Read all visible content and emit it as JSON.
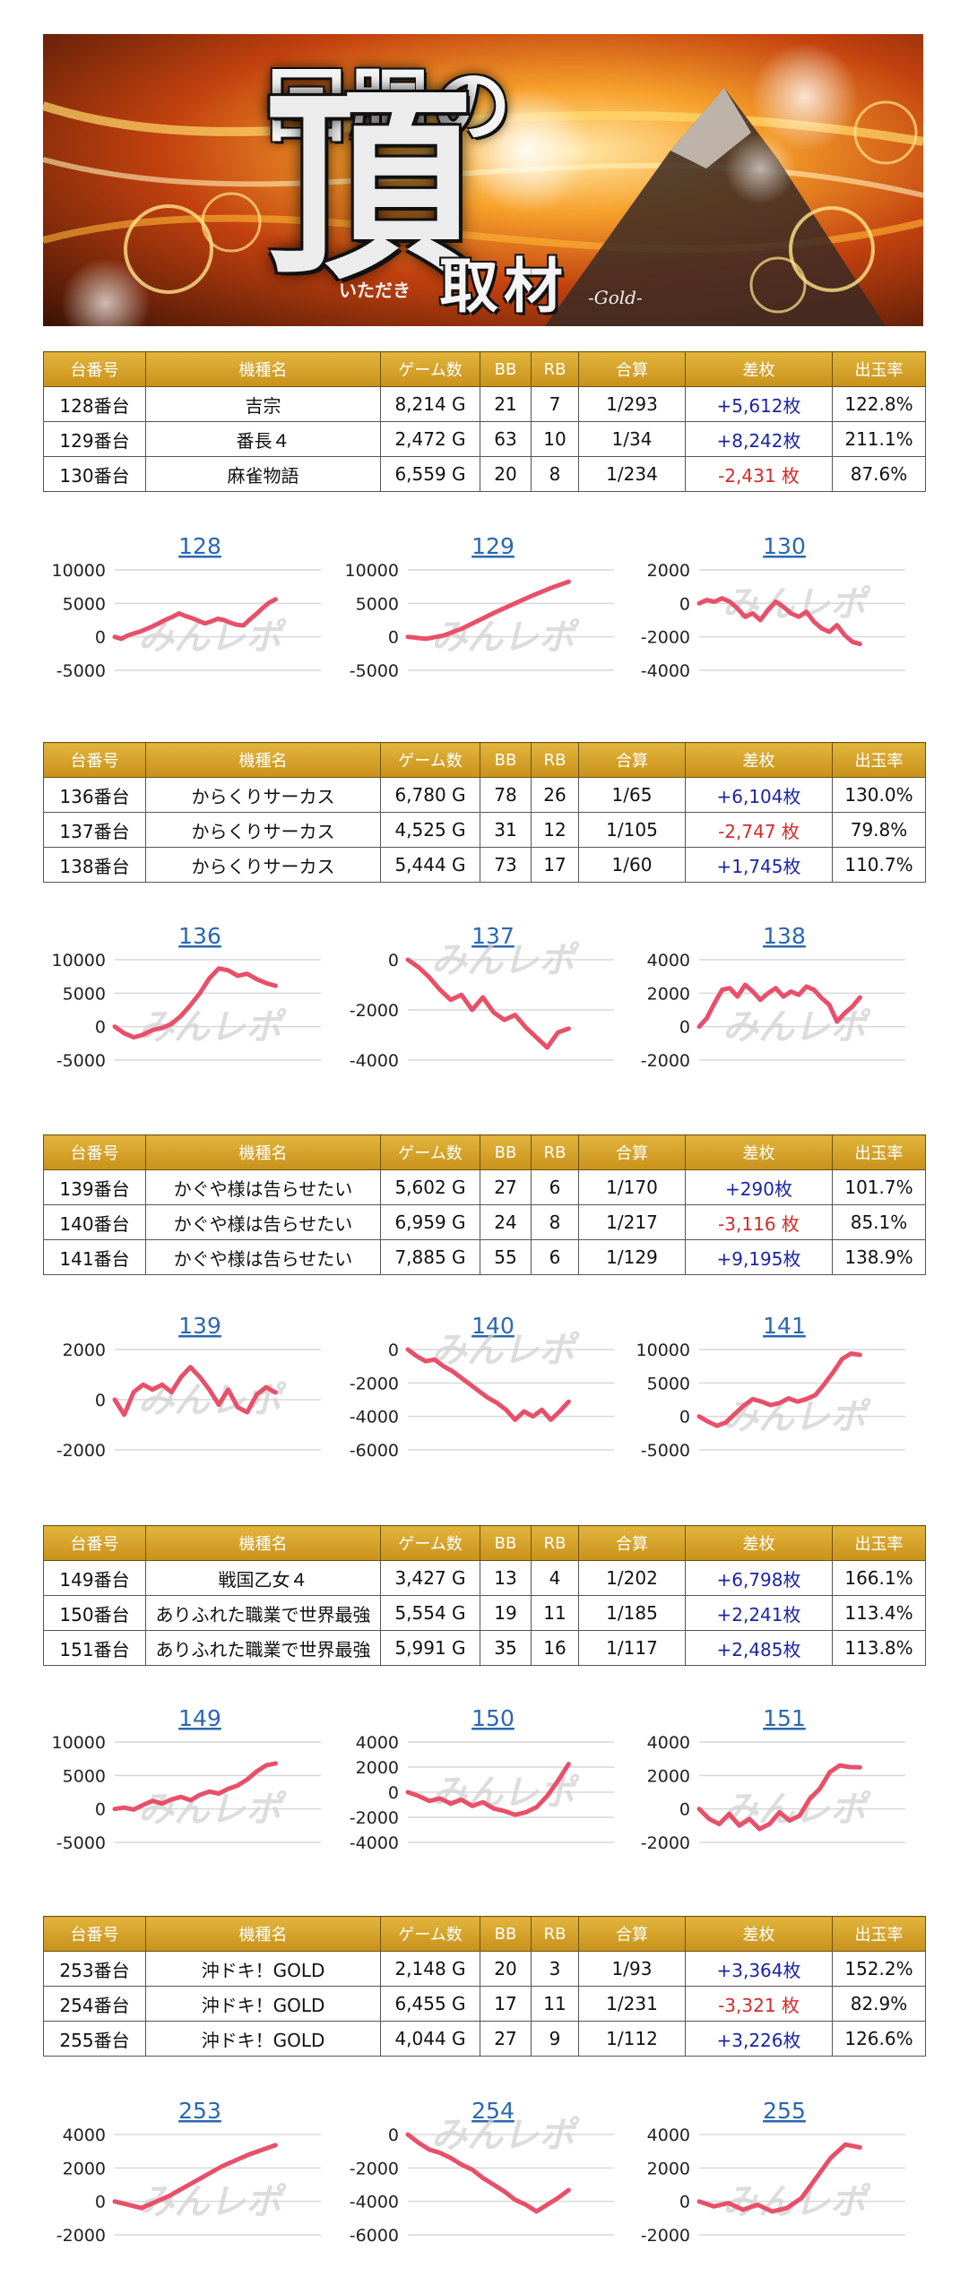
{
  "banner": {
    "title_top": "回胴の",
    "title_big": "頂",
    "title_ruby": "いただき",
    "title_sub": "取材",
    "title_tag": "-Gold-"
  },
  "table_headers": [
    "台番号",
    "機種名",
    "ゲーム数",
    "BB",
    "RB",
    "合算",
    "差枚",
    "出玉率"
  ],
  "watermark": "みんレポ",
  "colors": {
    "header_gold": "#d8a42a",
    "positive": "#1c24a8",
    "negative": "#d42a2a",
    "line": "#e8506a",
    "title_link": "#2a68b0"
  },
  "groups": [
    {
      "rows": [
        {
          "no": "128番台",
          "machine": "吉宗",
          "games": "8,214 G",
          "bb": "21",
          "rb": "7",
          "combined": "1/293",
          "diff": "+5,612枚",
          "rate": "122.8%",
          "sign": "pos"
        },
        {
          "no": "129番台",
          "machine": "番長４",
          "games": "2,472 G",
          "bb": "63",
          "rb": "10",
          "combined": "1/34",
          "diff": "+8,242枚",
          "rate": "211.1%",
          "sign": "pos"
        },
        {
          "no": "130番台",
          "machine": "麻雀物語",
          "games": "6,559 G",
          "bb": "20",
          "rb": "8",
          "combined": "1/234",
          "diff": "-2,431 枚",
          "rate": "87.6%",
          "sign": "neg"
        }
      ]
    },
    {
      "rows": [
        {
          "no": "136番台",
          "machine": "からくりサーカス",
          "games": "6,780 G",
          "bb": "78",
          "rb": "26",
          "combined": "1/65",
          "diff": "+6,104枚",
          "rate": "130.0%",
          "sign": "pos"
        },
        {
          "no": "137番台",
          "machine": "からくりサーカス",
          "games": "4,525 G",
          "bb": "31",
          "rb": "12",
          "combined": "1/105",
          "diff": "-2,747 枚",
          "rate": "79.8%",
          "sign": "neg"
        },
        {
          "no": "138番台",
          "machine": "からくりサーカス",
          "games": "5,444 G",
          "bb": "73",
          "rb": "17",
          "combined": "1/60",
          "diff": "+1,745枚",
          "rate": "110.7%",
          "sign": "pos"
        }
      ]
    },
    {
      "rows": [
        {
          "no": "139番台",
          "machine": "かぐや様は告らせたい",
          "games": "5,602 G",
          "bb": "27",
          "rb": "6",
          "combined": "1/170",
          "diff": "+290枚",
          "rate": "101.7%",
          "sign": "pos"
        },
        {
          "no": "140番台",
          "machine": "かぐや様は告らせたい",
          "games": "6,959 G",
          "bb": "24",
          "rb": "8",
          "combined": "1/217",
          "diff": "-3,116 枚",
          "rate": "85.1%",
          "sign": "neg"
        },
        {
          "no": "141番台",
          "machine": "かぐや様は告らせたい",
          "games": "7,885 G",
          "bb": "55",
          "rb": "6",
          "combined": "1/129",
          "diff": "+9,195枚",
          "rate": "138.9%",
          "sign": "pos"
        }
      ]
    },
    {
      "rows": [
        {
          "no": "149番台",
          "machine": "戦国乙女４",
          "games": "3,427 G",
          "bb": "13",
          "rb": "4",
          "combined": "1/202",
          "diff": "+6,798枚",
          "rate": "166.1%",
          "sign": "pos"
        },
        {
          "no": "150番台",
          "machine": "ありふれた職業で世界最強",
          "games": "5,554 G",
          "bb": "19",
          "rb": "11",
          "combined": "1/185",
          "diff": "+2,241枚",
          "rate": "113.4%",
          "sign": "pos"
        },
        {
          "no": "151番台",
          "machine": "ありふれた職業で世界最強",
          "games": "5,991 G",
          "bb": "35",
          "rb": "16",
          "combined": "1/117",
          "diff": "+2,485枚",
          "rate": "113.8%",
          "sign": "pos"
        }
      ]
    },
    {
      "rows": [
        {
          "no": "253番台",
          "machine": "沖ドキ！GOLD",
          "games": "2,148 G",
          "bb": "20",
          "rb": "3",
          "combined": "1/93",
          "diff": "+3,364枚",
          "rate": "152.2%",
          "sign": "pos"
        },
        {
          "no": "254番台",
          "machine": "沖ドキ！GOLD",
          "games": "6,455 G",
          "bb": "17",
          "rb": "11",
          "combined": "1/231",
          "diff": "-3,321 枚",
          "rate": "82.9%",
          "sign": "neg"
        },
        {
          "no": "255番台",
          "machine": "沖ドキ！GOLD",
          "games": "4,044 G",
          "bb": "27",
          "rb": "9",
          "combined": "1/112",
          "diff": "+3,226枚",
          "rate": "126.6%",
          "sign": "pos"
        }
      ]
    }
  ],
  "chart_data": [
    {
      "type": "line",
      "title": "128",
      "ylim": [
        -5000,
        10000
      ],
      "yticks": [
        10000,
        5000,
        0,
        -5000
      ],
      "y": [
        0,
        -300,
        200,
        500,
        800,
        1200,
        1600,
        2100,
        2600,
        3000,
        3500,
        3100,
        2800,
        2400,
        2000,
        2300,
        2700,
        2500,
        2100,
        1800,
        1700,
        2600,
        3400,
        4300,
        5100,
        5612
      ]
    },
    {
      "type": "line",
      "title": "129",
      "ylim": [
        -5000,
        10000
      ],
      "yticks": [
        10000,
        5000,
        0,
        -5000
      ],
      "y": [
        0,
        -300,
        200,
        1200,
        2500,
        3800,
        5000,
        6200,
        7300,
        8242
      ]
    },
    {
      "type": "line",
      "title": "130",
      "ylim": [
        -4000,
        2000
      ],
      "yticks": [
        2000,
        0,
        -2000,
        -4000
      ],
      "y": [
        0,
        200,
        100,
        300,
        100,
        -300,
        -800,
        -600,
        -1000,
        -400,
        100,
        -200,
        -600,
        -800,
        -500,
        -1100,
        -1500,
        -1700,
        -1300,
        -1900,
        -2300,
        -2431
      ]
    },
    {
      "type": "line",
      "title": "136",
      "ylim": [
        -5000,
        10000
      ],
      "yticks": [
        10000,
        5000,
        0,
        -5000
      ],
      "y": [
        0,
        -1000,
        -1600,
        -1200,
        -500,
        -200,
        400,
        1600,
        3200,
        5000,
        7200,
        8700,
        8400,
        7600,
        7900,
        7100,
        6500,
        6104
      ]
    },
    {
      "type": "line",
      "title": "137",
      "ylim": [
        -4000,
        0
      ],
      "yticks": [
        0,
        -2000,
        -4000
      ],
      "y": [
        0,
        -300,
        -700,
        -1200,
        -1600,
        -1400,
        -2000,
        -1500,
        -2100,
        -2400,
        -2200,
        -2700,
        -3100,
        -3500,
        -2900,
        -2747
      ]
    },
    {
      "type": "line",
      "title": "138",
      "ylim": [
        -2000,
        4000
      ],
      "yticks": [
        4000,
        2000,
        0,
        -2000
      ],
      "y": [
        0,
        500,
        1400,
        2200,
        2300,
        1800,
        2500,
        2100,
        1600,
        2000,
        2300,
        1800,
        2100,
        1900,
        2400,
        2200,
        1700,
        1300,
        300,
        800,
        1200,
        1745
      ]
    },
    {
      "type": "line",
      "title": "139",
      "ylim": [
        -2000,
        2000
      ],
      "yticks": [
        2000,
        0,
        -2000
      ],
      "y": [
        0,
        -600,
        300,
        600,
        400,
        600,
        300,
        900,
        1300,
        900,
        400,
        -200,
        400,
        -300,
        -500,
        200,
        500,
        290
      ]
    },
    {
      "type": "line",
      "title": "140",
      "ylim": [
        -6000,
        0
      ],
      "yticks": [
        0,
        -2000,
        -4000,
        -6000
      ],
      "y": [
        0,
        -400,
        -700,
        -600,
        -1000,
        -1300,
        -1700,
        -2100,
        -2500,
        -2900,
        -3200,
        -3600,
        -4200,
        -3700,
        -4000,
        -3600,
        -4200,
        -3700,
        -3116
      ]
    },
    {
      "type": "line",
      "title": "141",
      "ylim": [
        -5000,
        10000
      ],
      "yticks": [
        10000,
        5000,
        0,
        -5000
      ],
      "y": [
        0,
        -800,
        -1400,
        -900,
        400,
        1600,
        2600,
        2200,
        1700,
        2000,
        2700,
        2200,
        2600,
        3200,
        4800,
        6600,
        8600,
        9400,
        9195
      ]
    },
    {
      "type": "line",
      "title": "149",
      "ylim": [
        -5000,
        10000
      ],
      "yticks": [
        10000,
        5000,
        0,
        -5000
      ],
      "y": [
        0,
        200,
        -100,
        600,
        1200,
        800,
        1400,
        1800,
        1300,
        2100,
        2600,
        2300,
        3000,
        3500,
        4400,
        5600,
        6500,
        6798
      ]
    },
    {
      "type": "line",
      "title": "150",
      "ylim": [
        -4000,
        4000
      ],
      "yticks": [
        4000,
        2000,
        0,
        -2000,
        -4000
      ],
      "y": [
        0,
        -300,
        -700,
        -500,
        -900,
        -600,
        -1100,
        -800,
        -1300,
        -1500,
        -1800,
        -1600,
        -1200,
        -300,
        900,
        2241
      ]
    },
    {
      "type": "line",
      "title": "151",
      "ylim": [
        -2000,
        4000
      ],
      "yticks": [
        4000,
        2000,
        0,
        -2000
      ],
      "y": [
        0,
        -600,
        -900,
        -300,
        -1000,
        -600,
        -1200,
        -900,
        -200,
        -700,
        -400,
        600,
        1200,
        2200,
        2600,
        2500,
        2485
      ]
    },
    {
      "type": "line",
      "title": "253",
      "ylim": [
        -2000,
        4000
      ],
      "yticks": [
        4000,
        2000,
        0,
        -2000
      ],
      "y": [
        0,
        -400,
        300,
        1200,
        2100,
        2800,
        3364
      ]
    },
    {
      "type": "line",
      "title": "254",
      "ylim": [
        -6000,
        0
      ],
      "yticks": [
        0,
        -2000,
        -4000,
        -6000
      ],
      "y": [
        0,
        -500,
        -900,
        -1100,
        -1400,
        -1800,
        -2100,
        -2600,
        -3000,
        -3400,
        -3900,
        -4200,
        -4600,
        -4200,
        -3800,
        -3321
      ]
    },
    {
      "type": "line",
      "title": "255",
      "ylim": [
        -2000,
        4000
      ],
      "yticks": [
        4000,
        2000,
        0,
        -2000
      ],
      "y": [
        0,
        -300,
        -100,
        -500,
        -200,
        -600,
        -400,
        200,
        1400,
        2600,
        3400,
        3226
      ]
    }
  ]
}
